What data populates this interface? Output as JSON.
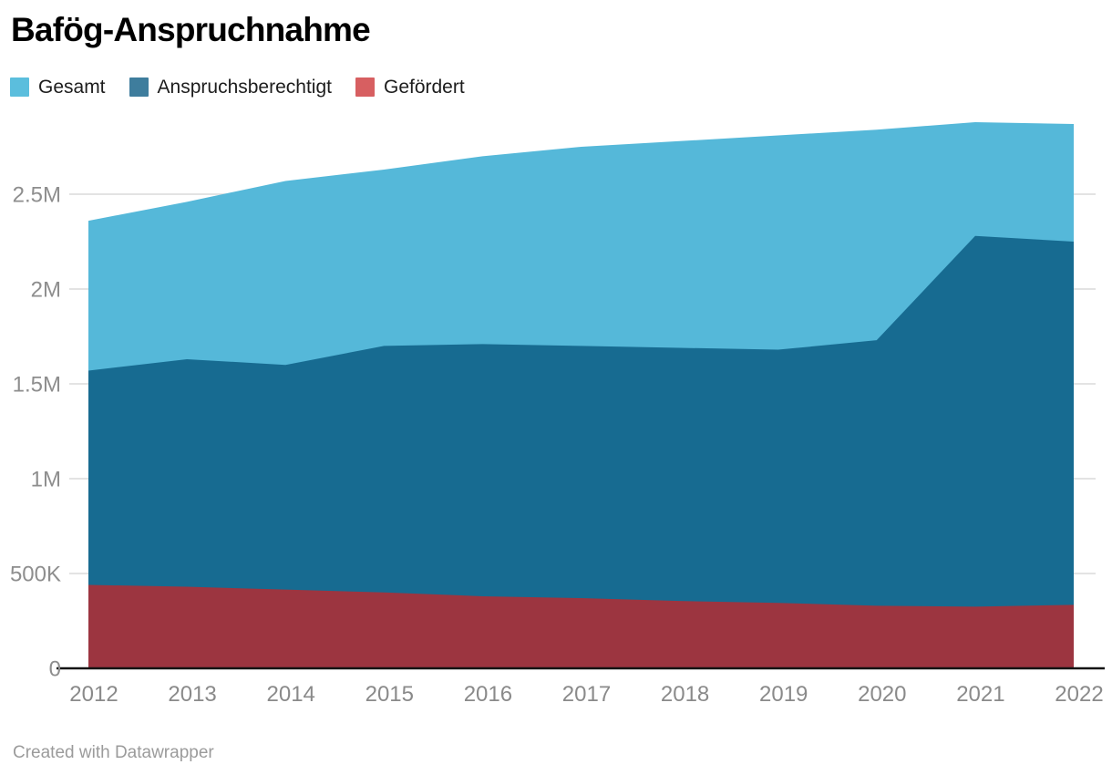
{
  "title": "Bafög-Anspruchnahme",
  "footer_credit": "Created with Datawrapper",
  "chart_data": {
    "type": "area",
    "title": "Bafög-Anspruchnahme",
    "overlapping_areas": true,
    "categories": [
      "2012",
      "2013",
      "2014",
      "2015",
      "2016",
      "2017",
      "2018",
      "2019",
      "2020",
      "2021",
      "2022"
    ],
    "unit": "persons (millions)",
    "series": [
      {
        "name": "Gesamt",
        "color": "#55b8d9",
        "legend_color": "#5bbedd",
        "values": [
          2.36,
          2.46,
          2.57,
          2.63,
          2.7,
          2.75,
          2.78,
          2.81,
          2.84,
          2.88,
          2.87
        ]
      },
      {
        "name": "Anspruchsberechtigt",
        "color": "#176b91",
        "legend_color": "#3e7d9d",
        "values": [
          1.57,
          1.63,
          1.6,
          1.7,
          1.71,
          1.7,
          1.69,
          1.68,
          1.73,
          2.28,
          2.25
        ]
      },
      {
        "name": "Gefördert",
        "color": "#9c3540",
        "legend_color": "#d75f61",
        "values": [
          0.44,
          0.43,
          0.415,
          0.4,
          0.38,
          0.37,
          0.355,
          0.345,
          0.33,
          0.325,
          0.335
        ]
      }
    ],
    "xlabel": "",
    "ylabel": "",
    "ylim": [
      0,
      2.9
    ],
    "yticks": [
      {
        "value": 0,
        "label": "0"
      },
      {
        "value": 0.5,
        "label": "500K"
      },
      {
        "value": 1,
        "label": "1M"
      },
      {
        "value": 1.5,
        "label": "1.5M"
      },
      {
        "value": 2,
        "label": "2M"
      },
      {
        "value": 2.5,
        "label": "2.5M"
      }
    ],
    "grid": "horizontal",
    "legend_position": "top-left",
    "style": {
      "background": "#ffffff",
      "grid_color": "#dadada",
      "axis_color": "#141414",
      "tick_label_color": "#8e8e8e",
      "legend_text_color": "#1d1d1d",
      "footer_color": "#9b9b9b"
    }
  }
}
